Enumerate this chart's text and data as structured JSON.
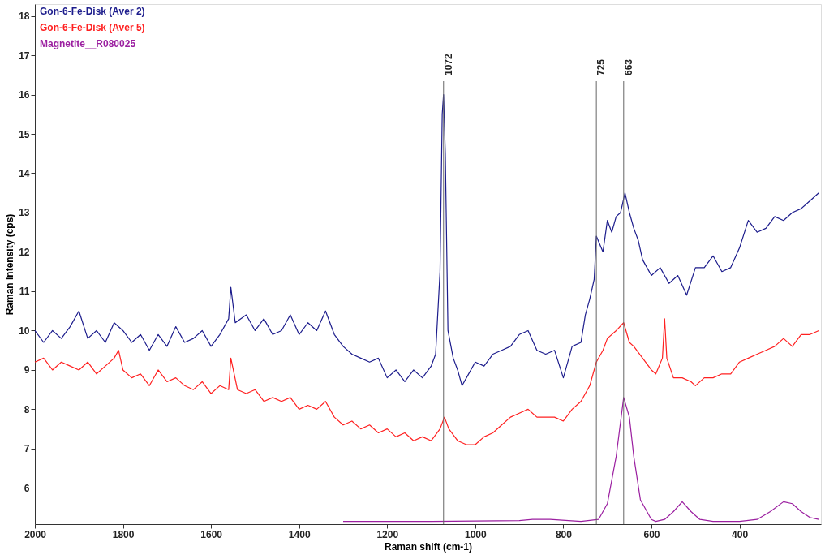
{
  "chart_data": {
    "type": "line",
    "xlabel": "Raman shift (cm-1)",
    "ylabel": "Raman Intensity (cps)",
    "xlim": [
      2000,
      215
    ],
    "ylim": [
      5.08,
      18.3
    ],
    "xticks": [
      2000,
      1800,
      1600,
      1400,
      1200,
      1000,
      800,
      600,
      400
    ],
    "yticks": [
      6,
      7,
      8,
      9,
      10,
      11,
      12,
      13,
      14,
      15,
      16,
      17,
      18
    ],
    "grid": false,
    "legend": "top left",
    "marker": "none",
    "line_style": "solid",
    "ref_lines": [
      {
        "axis": "x",
        "value": 1072,
        "label": "1072",
        "color": "#666666"
      },
      {
        "axis": "x",
        "value": 725,
        "label": "725",
        "color": "#666666"
      },
      {
        "axis": "x",
        "value": 663,
        "label": "663",
        "color": "#666666"
      }
    ],
    "series": [
      {
        "name": "Gon-6-Fe-Disk (Aver 2)",
        "color": "#1c1c8c",
        "x": [
          2000,
          1980,
          1960,
          1940,
          1920,
          1900,
          1880,
          1860,
          1840,
          1820,
          1800,
          1780,
          1760,
          1740,
          1720,
          1700,
          1680,
          1660,
          1640,
          1620,
          1600,
          1580,
          1560,
          1555,
          1545,
          1520,
          1500,
          1480,
          1460,
          1440,
          1420,
          1400,
          1380,
          1360,
          1340,
          1320,
          1300,
          1280,
          1260,
          1240,
          1220,
          1200,
          1180,
          1160,
          1140,
          1120,
          1100,
          1090,
          1080,
          1075,
          1072,
          1068,
          1062,
          1050,
          1040,
          1030,
          1020,
          1000,
          980,
          960,
          940,
          920,
          900,
          880,
          860,
          840,
          820,
          800,
          780,
          760,
          750,
          740,
          730,
          725,
          710,
          700,
          690,
          680,
          670,
          660,
          650,
          640,
          630,
          620,
          610,
          600,
          580,
          560,
          540,
          520,
          500,
          480,
          460,
          440,
          420,
          400,
          380,
          360,
          340,
          320,
          300,
          280,
          260,
          240,
          220
        ],
        "values": [
          10.0,
          9.7,
          10.0,
          9.8,
          10.1,
          10.5,
          9.8,
          10.0,
          9.7,
          10.2,
          10.0,
          9.7,
          9.9,
          9.5,
          9.9,
          9.6,
          10.1,
          9.7,
          9.8,
          10.0,
          9.6,
          9.9,
          10.3,
          11.1,
          10.2,
          10.4,
          10.0,
          10.3,
          9.9,
          10.0,
          10.4,
          9.9,
          10.2,
          10.0,
          10.5,
          9.9,
          9.6,
          9.4,
          9.3,
          9.2,
          9.3,
          8.8,
          9.0,
          8.7,
          9.0,
          8.8,
          9.1,
          9.4,
          11.5,
          15.5,
          16.0,
          14.5,
          10.0,
          9.3,
          9.0,
          8.6,
          8.8,
          9.2,
          9.1,
          9.4,
          9.5,
          9.6,
          9.9,
          10.0,
          9.5,
          9.4,
          9.5,
          8.8,
          9.6,
          9.7,
          10.4,
          10.8,
          11.3,
          12.4,
          12.0,
          12.8,
          12.5,
          12.9,
          13.0,
          13.5,
          13.0,
          12.6,
          12.3,
          11.8,
          11.6,
          11.4,
          11.6,
          11.2,
          11.4,
          10.9,
          11.6,
          11.6,
          11.9,
          11.5,
          11.6,
          12.1,
          12.8,
          12.5,
          12.6,
          12.9,
          12.8,
          13.0,
          13.1,
          13.3,
          13.5
        ]
      },
      {
        "name": "Gon-6-Fe-Disk (Aver 5)",
        "color": "#ff2020",
        "x": [
          2000,
          1980,
          1960,
          1940,
          1920,
          1900,
          1880,
          1860,
          1840,
          1820,
          1810,
          1800,
          1780,
          1760,
          1740,
          1720,
          1700,
          1680,
          1660,
          1640,
          1620,
          1600,
          1580,
          1560,
          1555,
          1540,
          1520,
          1500,
          1480,
          1460,
          1440,
          1420,
          1400,
          1380,
          1360,
          1340,
          1320,
          1300,
          1280,
          1260,
          1240,
          1220,
          1200,
          1180,
          1160,
          1140,
          1120,
          1100,
          1080,
          1070,
          1060,
          1040,
          1020,
          1000,
          980,
          960,
          940,
          920,
          900,
          880,
          860,
          840,
          820,
          800,
          780,
          760,
          740,
          725,
          710,
          700,
          680,
          663,
          650,
          640,
          620,
          600,
          590,
          575,
          570,
          565,
          550,
          530,
          510,
          500,
          480,
          460,
          440,
          420,
          400,
          380,
          360,
          340,
          320,
          300,
          280,
          260,
          240,
          220
        ],
        "values": [
          9.2,
          9.3,
          9.0,
          9.2,
          9.1,
          9.0,
          9.2,
          8.9,
          9.1,
          9.3,
          9.5,
          9.0,
          8.8,
          8.9,
          8.6,
          9.0,
          8.7,
          8.8,
          8.6,
          8.5,
          8.7,
          8.4,
          8.6,
          8.5,
          9.3,
          8.5,
          8.4,
          8.5,
          8.2,
          8.3,
          8.2,
          8.3,
          8.0,
          8.1,
          8.0,
          8.2,
          7.8,
          7.6,
          7.7,
          7.5,
          7.6,
          7.4,
          7.5,
          7.3,
          7.4,
          7.2,
          7.3,
          7.2,
          7.5,
          7.8,
          7.5,
          7.2,
          7.1,
          7.1,
          7.3,
          7.4,
          7.6,
          7.8,
          7.9,
          8.0,
          7.8,
          7.8,
          7.8,
          7.7,
          8.0,
          8.2,
          8.6,
          9.2,
          9.5,
          9.8,
          10.0,
          10.2,
          9.7,
          9.6,
          9.3,
          9.0,
          8.9,
          9.3,
          10.3,
          9.3,
          8.8,
          8.8,
          8.7,
          8.6,
          8.8,
          8.8,
          8.9,
          8.9,
          9.2,
          9.3,
          9.4,
          9.5,
          9.6,
          9.8,
          9.6,
          9.9,
          9.9,
          10.0
        ]
      },
      {
        "name": "Magnetite__R080025",
        "color": "#9b1fa0",
        "x": [
          1300,
          1200,
          1100,
          1000,
          900,
          870,
          830,
          760,
          720,
          700,
          680,
          663,
          650,
          640,
          625,
          600,
          590,
          570,
          550,
          530,
          510,
          490,
          460,
          400,
          360,
          330,
          300,
          280,
          260,
          240,
          220
        ],
        "values": [
          5.15,
          5.15,
          5.15,
          5.16,
          5.17,
          5.2,
          5.2,
          5.15,
          5.2,
          5.6,
          6.8,
          8.3,
          7.8,
          6.8,
          5.7,
          5.2,
          5.15,
          5.2,
          5.4,
          5.65,
          5.4,
          5.2,
          5.15,
          5.15,
          5.2,
          5.4,
          5.65,
          5.6,
          5.4,
          5.25,
          5.2
        ]
      }
    ]
  }
}
